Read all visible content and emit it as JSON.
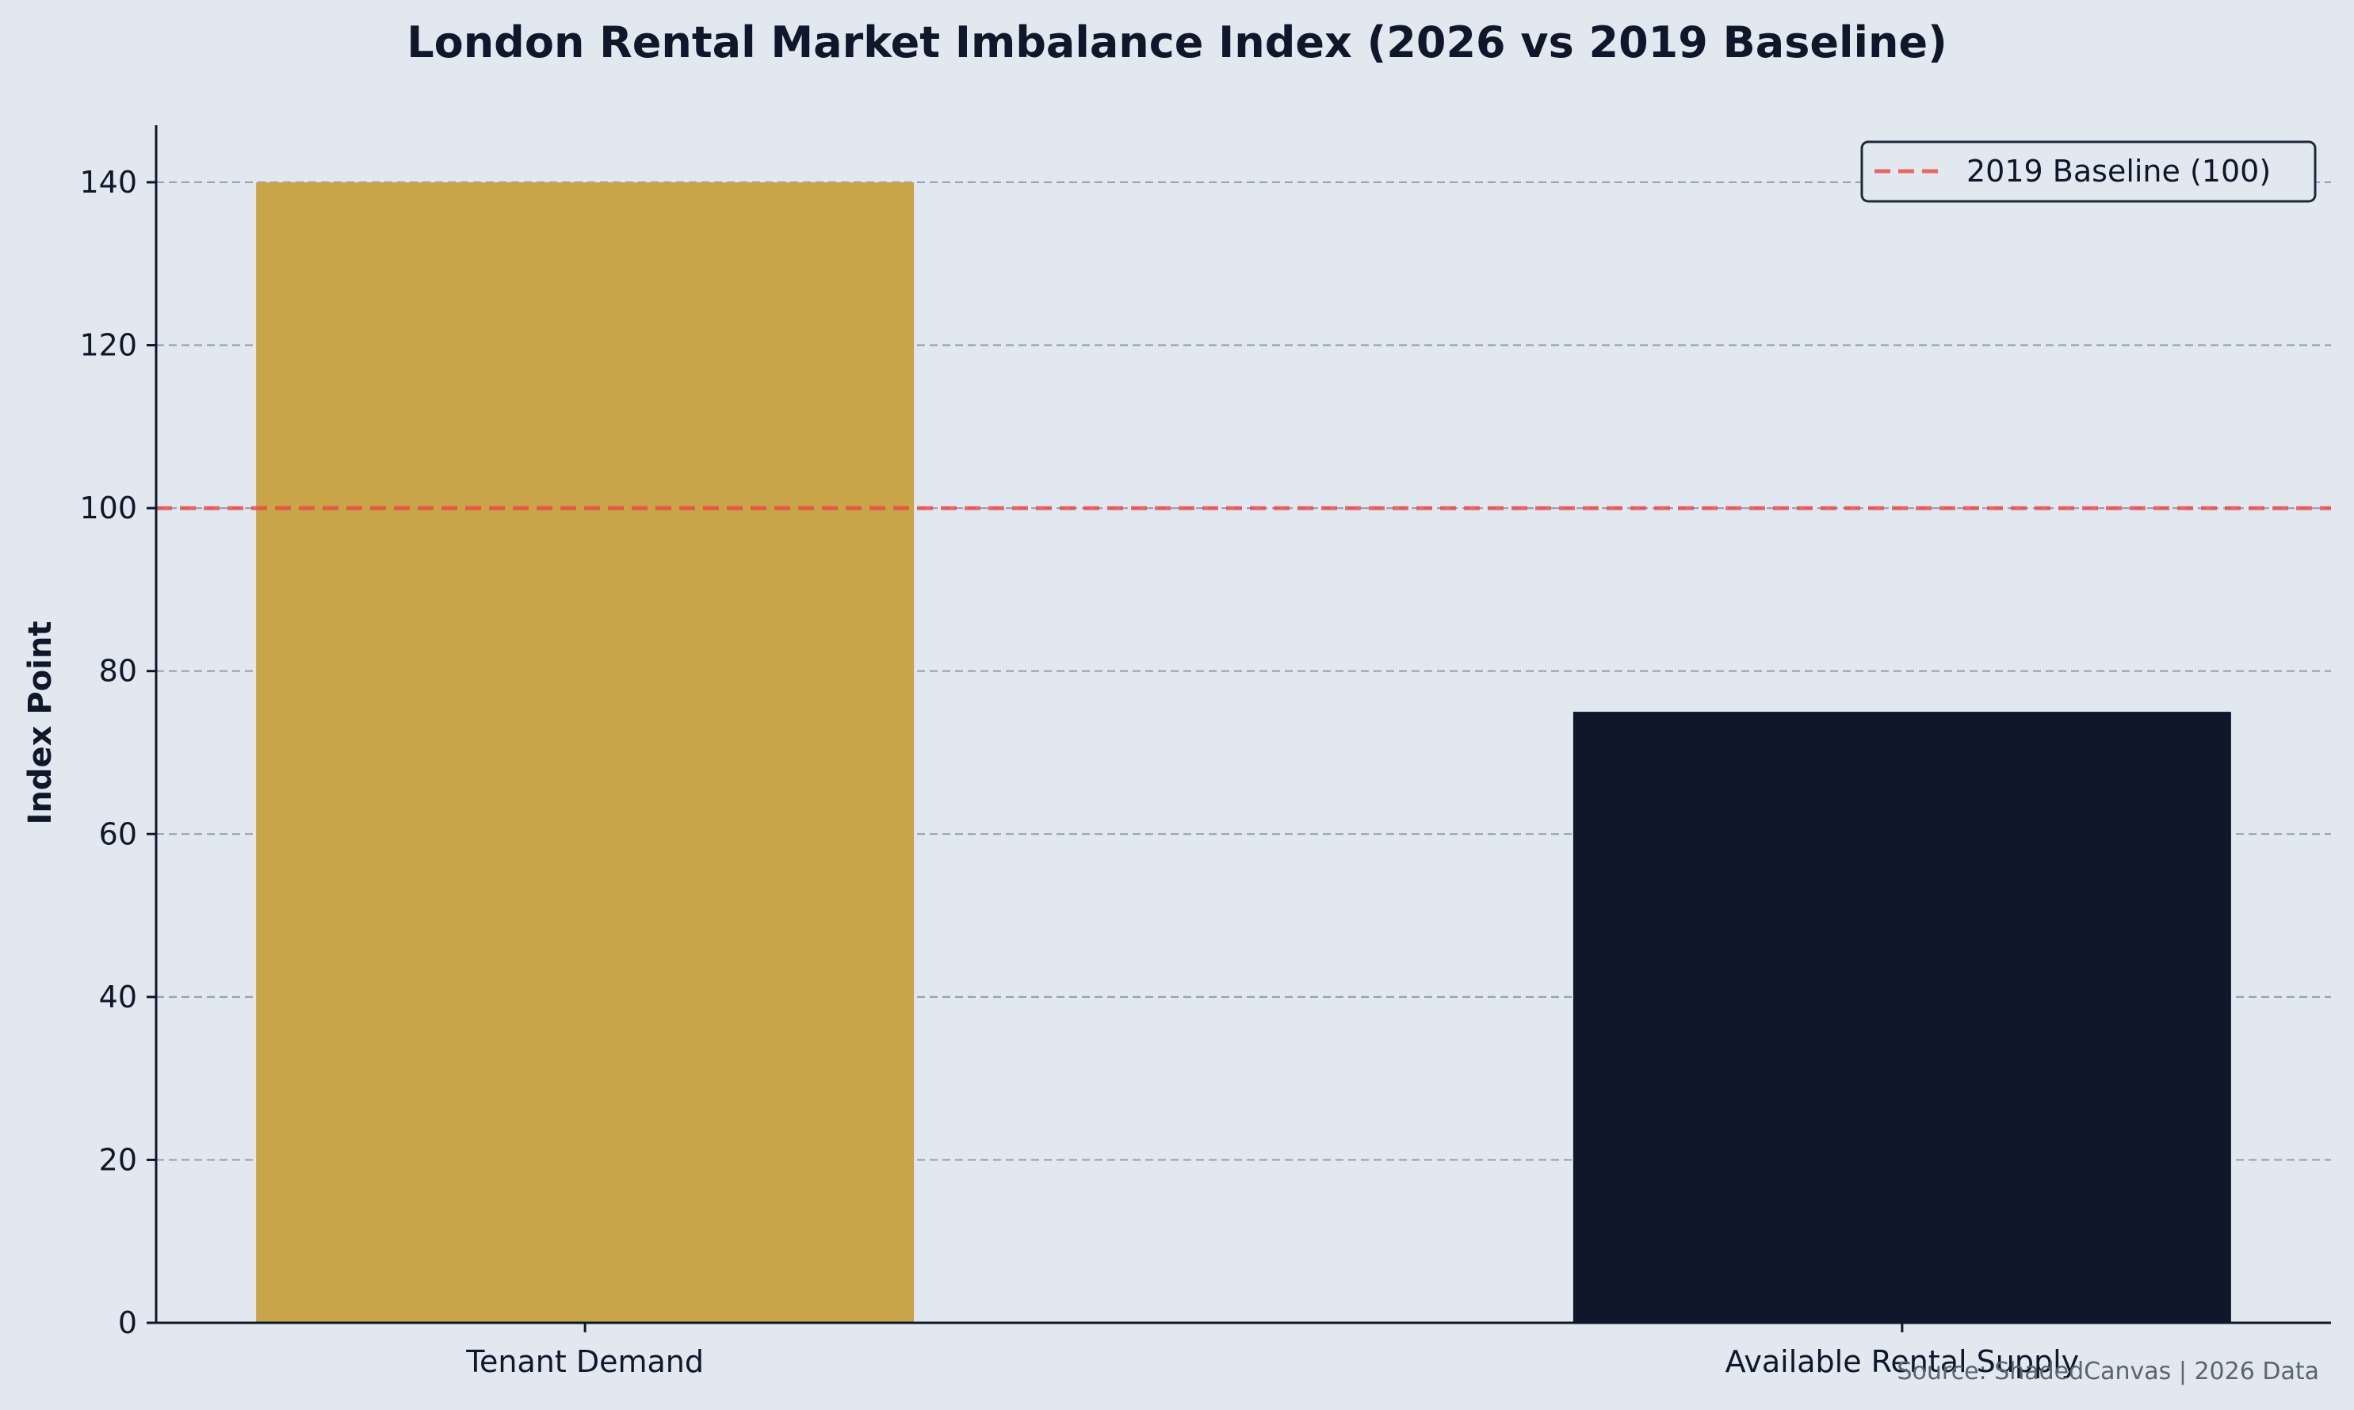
{
  "chart_data": {
    "type": "bar",
    "title": "London Rental Market Imbalance Index (2026 vs 2019 Baseline)",
    "xlabel": "",
    "ylabel": "Index Point",
    "categories": [
      "Tenant Demand",
      "Available Rental Supply"
    ],
    "values": [
      140,
      75
    ],
    "bar_colors": [
      "#c7a548",
      "#0f172a"
    ],
    "ylim": [
      0,
      147
    ],
    "yticks": [
      0,
      20,
      40,
      60,
      80,
      100,
      120,
      140
    ],
    "ytick_labels": [
      "0",
      "20",
      "40",
      "60",
      "80",
      "100",
      "120",
      "140"
    ],
    "grid": "horizontal dashed",
    "reference_line": {
      "value": 100,
      "label": "2019 Baseline (100)",
      "color": "#ef4444",
      "style": "dashed"
    },
    "legend_position": "top-right",
    "source": "Source: ShadedCanvas | 2026 Data"
  },
  "colors": {
    "background": "#e2e8f0",
    "axis": "#0f172a",
    "grid": "#94a3b8"
  }
}
